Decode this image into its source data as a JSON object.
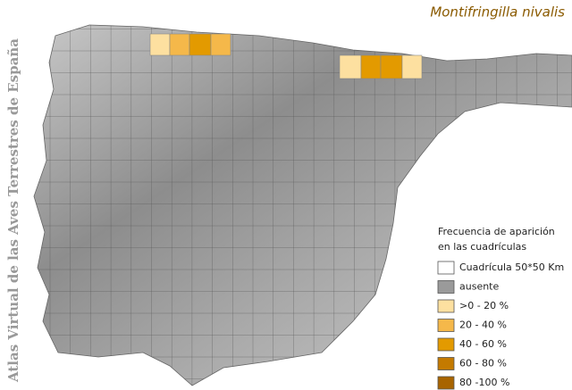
{
  "title": "Montifringilla nivalis",
  "side_title": "Atlas Virtual de las Aves Terrestres de España",
  "legend": {
    "title": [
      "Frecuencia de aparición",
      "en las cuadrículas"
    ],
    "items": [
      {
        "label": "Cuadrícula 50*50 Km",
        "color": "#ffffff"
      },
      {
        "label": "ausente",
        "color": "#9a9a9a"
      },
      {
        "label": ">0 - 20 %",
        "color": "#fde0a0"
      },
      {
        "label": "20 - 40 %",
        "color": "#f5b84a"
      },
      {
        "label": "40 - 60 %",
        "color": "#e39a00"
      },
      {
        "label": "60 - 80 %",
        "color": "#c47a00"
      },
      {
        "label": "80 -100 %",
        "color": "#a86400"
      }
    ]
  }
}
